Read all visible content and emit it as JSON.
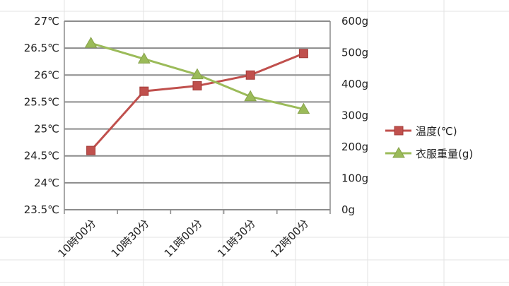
{
  "chart_data": {
    "type": "line",
    "categories": [
      "10時00分",
      "10時30分",
      "11時00分",
      "11時30分",
      "12時00分"
    ],
    "series": [
      {
        "name": "温度(℃)",
        "axis": "left",
        "color": "#c0504d",
        "marker": "square",
        "values": [
          24.6,
          25.7,
          25.8,
          26.0,
          26.4
        ]
      },
      {
        "name": "衣服重量(g)",
        "axis": "right",
        "color": "#9bbb59",
        "marker": "triangle",
        "values": [
          530,
          480,
          430,
          360,
          320
        ]
      }
    ],
    "y_left": {
      "ylim": [
        23.5,
        27
      ],
      "ticks": [
        23.5,
        24,
        24.5,
        25,
        25.5,
        26,
        26.5,
        27
      ],
      "tick_labels": [
        "23.5℃",
        "24℃",
        "24.5℃",
        "25℃",
        "25.5℃",
        "26℃",
        "26.5℃",
        "27℃"
      ]
    },
    "y_right": {
      "ylim": [
        0,
        600
      ],
      "ticks": [
        0,
        100,
        200,
        300,
        400,
        500,
        600
      ],
      "tick_labels": [
        "0g",
        "100g",
        "200g",
        "300g",
        "400g",
        "500g",
        "600g"
      ]
    },
    "grid": true,
    "legend": "right"
  }
}
